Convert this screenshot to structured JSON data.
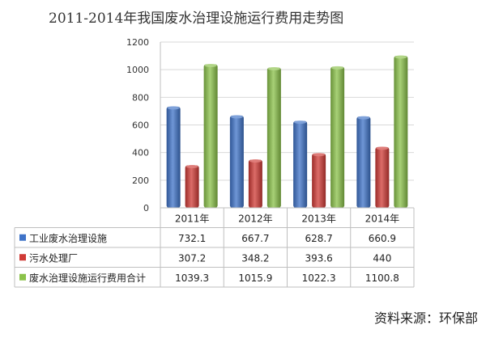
{
  "chart_data": {
    "type": "bar",
    "title": "2011-2014年我国废水治理设施运行费用走势图",
    "categories": [
      "2011年",
      "2012年",
      "2013年",
      "2014年"
    ],
    "series": [
      {
        "name": "工业废水治理设施",
        "values": [
          732.1,
          667.7,
          628.7,
          660.9
        ],
        "color": "#3f73c8",
        "value_labels": [
          "732.1",
          "667.7",
          "628.7",
          "660.9"
        ]
      },
      {
        "name": "污水处理厂",
        "values": [
          307.2,
          348.2,
          393.6,
          440
        ],
        "color": "#d03b36",
        "value_labels": [
          "307.2",
          "348.2",
          "393.6",
          "440"
        ]
      },
      {
        "name": "废水治理设施运行费用合计",
        "values": [
          1039.3,
          1015.9,
          1022.3,
          1100.8
        ],
        "color": "#8bc24a",
        "value_labels": [
          "1039.3",
          "1015.9",
          "1022.3",
          "1100.8"
        ]
      }
    ],
    "ylim": [
      0,
      1200
    ],
    "yticks": [
      "0",
      "200",
      "400",
      "600",
      "800",
      "1000",
      "1200"
    ],
    "grid": true,
    "legend_placement": "data-table-left"
  },
  "source_note": "资料来源：环保部"
}
